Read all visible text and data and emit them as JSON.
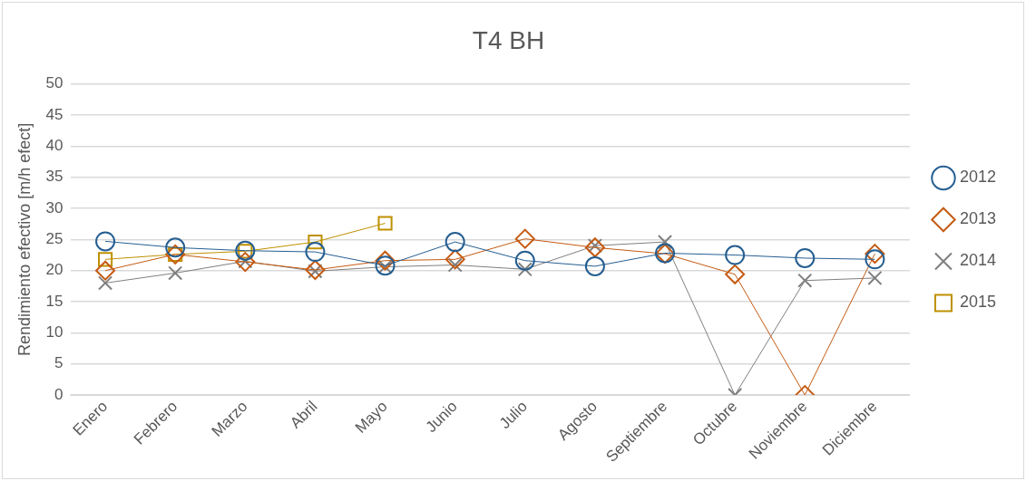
{
  "chart_data": {
    "type": "line",
    "title": "T4 BH",
    "ylabel": "Rendimiento efectivo [m/h efect]",
    "categories": [
      "Enero",
      "Febrero",
      "Marzo",
      "Abril",
      "Mayo",
      "Junio",
      "Julio",
      "Agosto",
      "Septiembre",
      "Octubre",
      "Noviembre",
      "Diciembre"
    ],
    "series": [
      {
        "name": "2012",
        "color": "#255e91",
        "marker": "circle",
        "values": [
          24.7,
          23.7,
          23.2,
          23.0,
          20.8,
          24.6,
          21.6,
          20.7,
          22.8,
          22.5,
          22.0,
          21.8
        ]
      },
      {
        "name": "2013",
        "color": "#c55a11",
        "marker": "diamond",
        "values": [
          20.0,
          22.6,
          21.4,
          20.1,
          21.6,
          21.8,
          25.1,
          23.7,
          22.7,
          19.4,
          0,
          22.7
        ]
      },
      {
        "name": "2014",
        "color": "#7f7f7f",
        "marker": "cross",
        "values": [
          18.0,
          19.6,
          21.5,
          19.9,
          20.6,
          20.9,
          20.2,
          24.0,
          24.6,
          0,
          18.4,
          18.8
        ]
      },
      {
        "name": "2015",
        "color": "#bf9000",
        "marker": "square",
        "values": [
          21.8,
          22.6,
          23.1,
          24.6,
          27.6,
          null,
          null,
          null,
          null,
          null,
          null,
          null
        ]
      }
    ],
    "ylim": [
      0,
      50
    ],
    "yticks": [
      0,
      5,
      10,
      15,
      20,
      25,
      30,
      35,
      40,
      45,
      50
    ],
    "grid": "y",
    "legend": "right"
  }
}
